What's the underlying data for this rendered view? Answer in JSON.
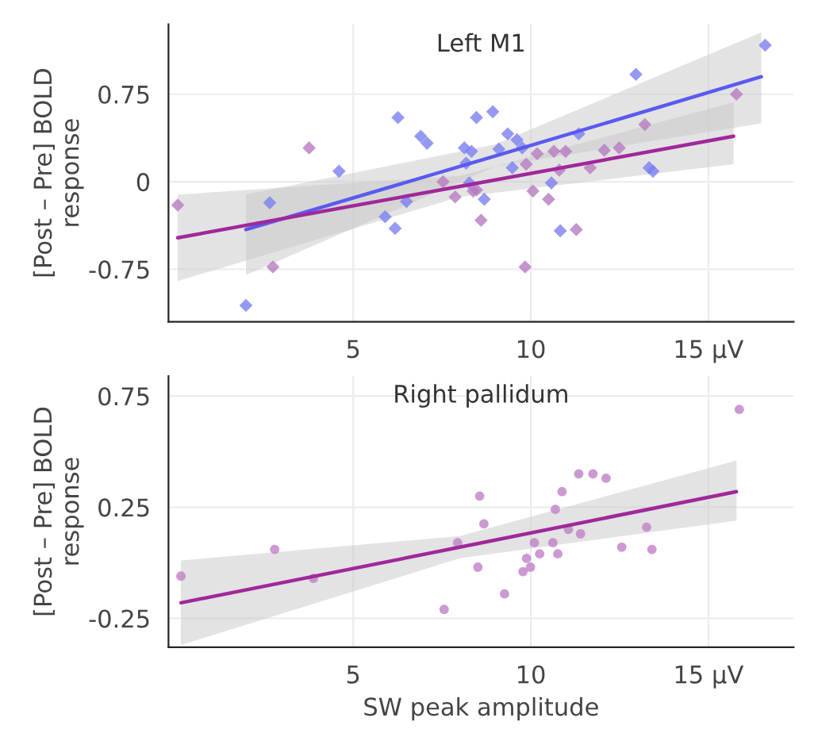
{
  "chart_data": [
    {
      "type": "scatter",
      "title": "Left M1",
      "ylabel": "[Post – Pre] BOLD\nresponse",
      "xlim": [
        -0.2,
        17.4
      ],
      "ylim": [
        -1.2,
        1.35
      ],
      "xticks": [
        5,
        10,
        {
          "value": 15,
          "label": "15 µV"
        }
      ],
      "yticks": [
        -0.75,
        0,
        0.75
      ],
      "grid": true,
      "series": [
        {
          "type": "line",
          "color": "#5a5af0",
          "x": [
            1.98,
            9,
            16.49
          ],
          "values": [
            -0.41,
            0.22,
            0.9
          ],
          "lower": [
            -0.8,
            0.13,
            0.5
          ],
          "upper": [
            -0.11,
            0.32,
            1.28
          ]
        },
        {
          "type": "line",
          "color": "#a0289a",
          "x": [
            0.06,
            8,
            15.71
          ],
          "values": [
            -0.48,
            -0.04,
            0.39
          ],
          "lower": [
            -0.85,
            -0.13,
            0.15
          ],
          "upper": [
            -0.11,
            0.05,
            0.68
          ]
        },
        {
          "marker": "diamond",
          "color": "#7b7ff0",
          "x": [
            1.98,
            2.65,
            4.6,
            5.9,
            6.18,
            6.26,
            6.5,
            6.9,
            7.08,
            8.13,
            8.18,
            8.33,
            8.47,
            8.27,
            8.69,
            8.93,
            9.1,
            9.35,
            9.48,
            9.61,
            9.76,
            10.58,
            10.83,
            11.35,
            12.96,
            13.33,
            13.44,
            16.6
          ],
          "values": [
            -1.06,
            -0.18,
            0.09,
            -0.3,
            -0.4,
            0.55,
            -0.17,
            0.39,
            0.33,
            0.29,
            0.16,
            0.26,
            0.55,
            -0.01,
            -0.15,
            0.6,
            0.28,
            0.41,
            0.12,
            0.36,
            0.29,
            -0.01,
            -0.42,
            0.41,
            0.92,
            0.12,
            0.09,
            1.17
          ]
        },
        {
          "marker": "diamond",
          "color": "#b77bc2",
          "x": [
            0.06,
            2.74,
            3.76,
            7.53,
            7.87,
            8.38,
            8.47,
            8.6,
            9.84,
            9.87,
            10.06,
            10.18,
            10.5,
            10.65,
            10.8,
            10.98,
            11.28,
            11.67,
            12.07,
            12.49,
            13.21,
            15.79
          ],
          "values": [
            -0.2,
            -0.73,
            0.29,
            0,
            -0.13,
            -0.08,
            -0.07,
            -0.33,
            -0.73,
            0.15,
            -0.08,
            0.24,
            -0.15,
            0.26,
            0.1,
            0.26,
            -0.41,
            0.12,
            0.27,
            0.29,
            0.49,
            0.75
          ]
        }
      ]
    },
    {
      "type": "scatter",
      "title": "Right pallidum",
      "xlabel": "SW peak amplitude",
      "ylabel": "[Post – Pre] BOLD\nresponse",
      "xlim": [
        -0.2,
        17.4
      ],
      "ylim": [
        -0.38,
        0.84
      ],
      "xticks": [
        5,
        10,
        {
          "value": 15,
          "label": "15 µV"
        }
      ],
      "yticks": [
        -0.25,
        0.25,
        0.75
      ],
      "grid": true,
      "series": [
        {
          "type": "line",
          "color": "#a0289a",
          "x": [
            0.15,
            8,
            15.79
          ],
          "values": [
            -0.18,
            0.07,
            0.32
          ],
          "lower": [
            -0.37,
            0.02,
            0.19
          ],
          "upper": [
            0.01,
            0.12,
            0.46
          ]
        },
        {
          "marker": "circle",
          "color": "#c080c8",
          "x": [
            0.15,
            2.79,
            3.88,
            7.56,
            7.94,
            8.51,
            8.56,
            8.68,
            9.26,
            9.78,
            9.88,
            9.99,
            10.1,
            10.25,
            10.62,
            10.69,
            10.76,
            10.88,
            11.06,
            11.35,
            11.4,
            11.75,
            12.12,
            12.56,
            13.26,
            13.41,
            15.87
          ],
          "values": [
            -0.06,
            0.06,
            -0.07,
            -0.21,
            0.09,
            -0.02,
            0.3,
            0.175,
            -0.14,
            -0.04,
            0.02,
            -0.02,
            0.09,
            0.04,
            0.09,
            0.24,
            0.04,
            0.32,
            0.15,
            0.4,
            0.13,
            0.4,
            0.38,
            0.07,
            0.16,
            0.06,
            0.69
          ]
        }
      ]
    }
  ]
}
